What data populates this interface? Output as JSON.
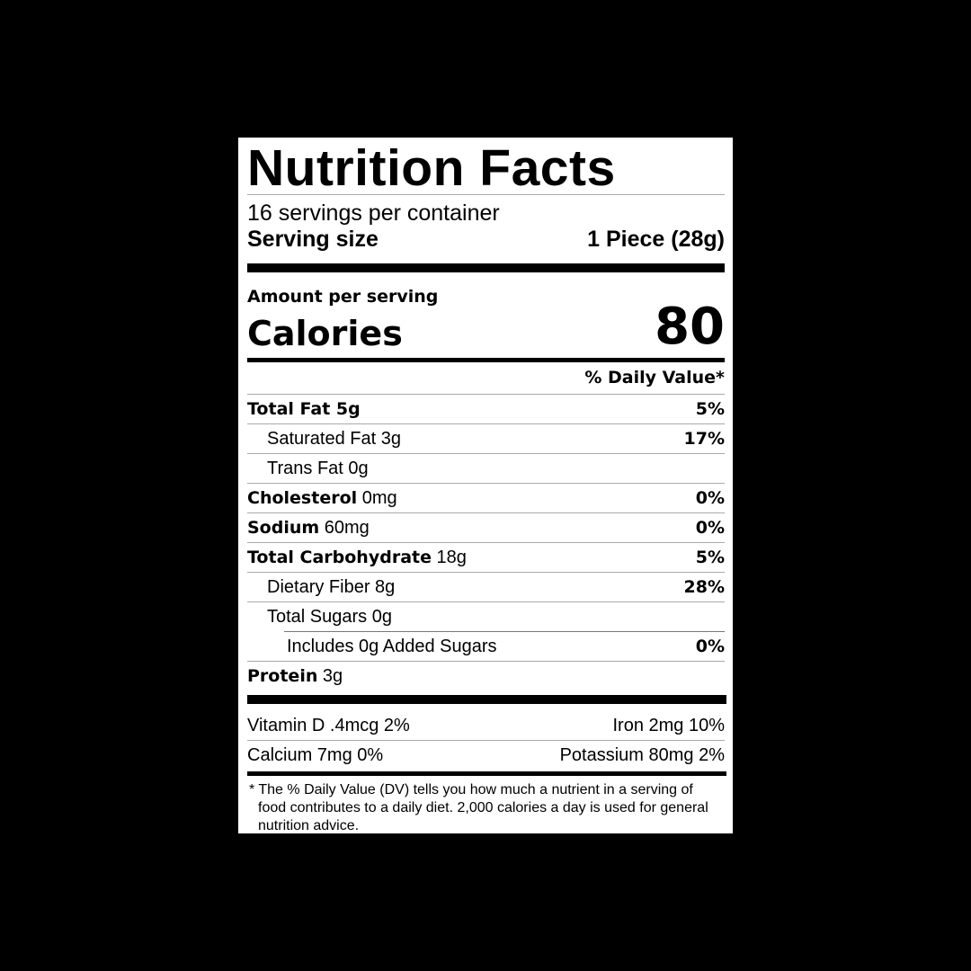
{
  "title": "Nutrition Facts",
  "servings_per_container": "16 servings per container",
  "serving_size_label": "Serving size",
  "serving_size_value": "1 Piece (28g)",
  "amount_per_serving": "Amount per serving",
  "calories_label": "Calories",
  "calories_value": "80",
  "daily_value_header": "% Daily Value*",
  "nutrients": [
    {
      "name": "Total Fat 5g",
      "amount": "",
      "dv": "5%"
    },
    {
      "name": "Saturated Fat 3g",
      "amount": "",
      "dv": "17%"
    },
    {
      "name": "Trans Fat 0g",
      "amount": "",
      "dv": ""
    },
    {
      "name": "Cholesterol",
      "amount": "0mg",
      "dv": "0%"
    },
    {
      "name": "Sodium",
      "amount": "60mg",
      "dv": "0%"
    },
    {
      "name": "Total Carbohydrate",
      "amount": "18g",
      "dv": "5%"
    },
    {
      "name": "Dietary Fiber 8g",
      "amount": "",
      "dv": "28%"
    },
    {
      "name": "Total Sugars 0g",
      "amount": "",
      "dv": ""
    },
    {
      "name": "Includes 0g Added Sugars",
      "amount": "",
      "dv": "0%"
    },
    {
      "name": "Protein",
      "amount": "3g",
      "dv": ""
    }
  ],
  "vitamins": [
    {
      "left": "Vitamin D .4mcg 2%",
      "right": "Iron 2mg 10%"
    },
    {
      "left": "Calcium 7mg 0%",
      "right": "Potassium 80mg 2%"
    }
  ],
  "footnote": "* The % Daily Value (DV) tells you how much a nutrient in a serving of food contributes to a daily diet. 2,000 calories a day is used for general nutrition advice."
}
